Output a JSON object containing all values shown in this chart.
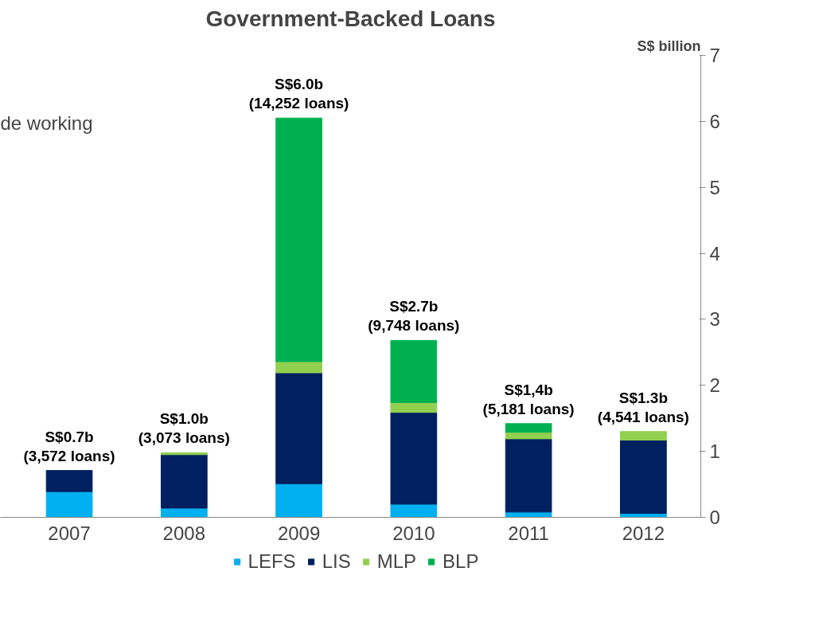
{
  "chart_data": {
    "type": "bar",
    "title": "Government-Backed Loans",
    "ylabel": "S$ billion",
    "stacked": true,
    "categories": [
      "2007",
      "2008",
      "2009",
      "2010",
      "2011",
      "2012"
    ],
    "series": [
      {
        "name": "LEFS",
        "color": "#00b0f0",
        "values": [
          0.39,
          0.14,
          0.51,
          0.2,
          0.08,
          0.06
        ]
      },
      {
        "name": "LIS",
        "color": "#002060",
        "values": [
          0.32,
          0.81,
          1.68,
          1.39,
          1.11,
          1.11
        ]
      },
      {
        "name": "MLP",
        "color": "#92d050",
        "values": [
          null,
          0.03,
          0.17,
          0.15,
          0.1,
          0.13
        ]
      },
      {
        "name": "BLP",
        "color": "#00b050",
        "values": [
          null,
          null,
          3.69,
          0.94,
          0.13,
          null
        ]
      }
    ],
    "totals": [
      "S$0.7b\n(3,572 loans)",
      "S$1.0b\n(3,073 loans)",
      "S$6.0b\n(14,252 loans)",
      "S$2.7b\n(9,748 loans)",
      "S$1,4b\n(5,181 loans)",
      "S$1.3b\n(4,541 loans)"
    ],
    "annotations": [
      "de working"
    ],
    "ylim": [
      0,
      7
    ],
    "yticks": [
      0,
      1,
      2,
      3,
      4,
      5,
      6,
      7
    ],
    "grid": false,
    "legend": "bottom"
  }
}
